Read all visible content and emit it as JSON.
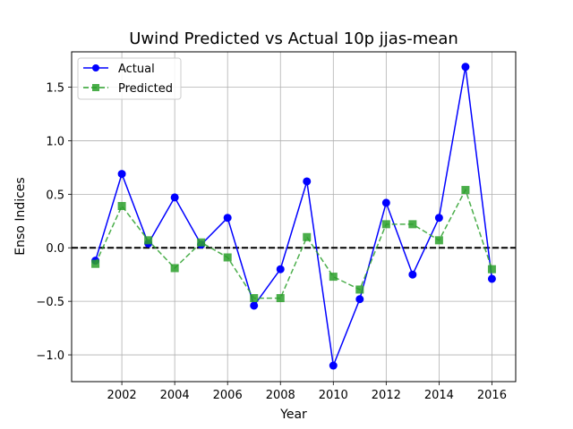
{
  "chart_data": {
    "type": "line",
    "title": "Uwind Predicted vs Actual 10p jjas-mean",
    "xlabel": "Year",
    "ylabel": "Enso Indices",
    "xlim": [
      2000.1,
      2016.9
    ],
    "ylim": [
      -1.25,
      1.83
    ],
    "x_ticks": [
      2002,
      2004,
      2006,
      2008,
      2010,
      2012,
      2014,
      2016
    ],
    "y_ticks": [
      -1.0,
      -0.5,
      0.0,
      0.5,
      1.0,
      1.5
    ],
    "x_tick_labels": [
      "2002",
      "2004",
      "2006",
      "2008",
      "2010",
      "2012",
      "2014",
      "2016"
    ],
    "y_tick_labels": [
      "−1.0",
      "−0.5",
      "0.0",
      "0.5",
      "1.0",
      "1.5"
    ],
    "grid": true,
    "legend_position": "upper-left",
    "reference_line": {
      "y": 0.0,
      "style": "dashed",
      "color": "#000000"
    },
    "x": [
      2001,
      2002,
      2003,
      2004,
      2005,
      2006,
      2007,
      2008,
      2009,
      2010,
      2011,
      2012,
      2013,
      2014,
      2015,
      2016
    ],
    "series": [
      {
        "name": "Actual",
        "color": "#0000ff",
        "line_style": "solid",
        "marker": "circle",
        "values": [
          -0.12,
          0.69,
          0.04,
          0.47,
          0.03,
          0.28,
          -0.54,
          -0.2,
          0.62,
          -1.1,
          -0.48,
          0.42,
          -0.25,
          0.28,
          1.69,
          -0.29
        ]
      },
      {
        "name": "Predicted",
        "color": "#2ca02c",
        "line_style": "dashed",
        "marker": "square",
        "values": [
          -0.15,
          0.39,
          0.07,
          -0.19,
          0.05,
          -0.09,
          -0.47,
          -0.47,
          0.1,
          -0.27,
          -0.39,
          0.22,
          0.22,
          0.07,
          0.54,
          -0.2
        ]
      }
    ]
  }
}
